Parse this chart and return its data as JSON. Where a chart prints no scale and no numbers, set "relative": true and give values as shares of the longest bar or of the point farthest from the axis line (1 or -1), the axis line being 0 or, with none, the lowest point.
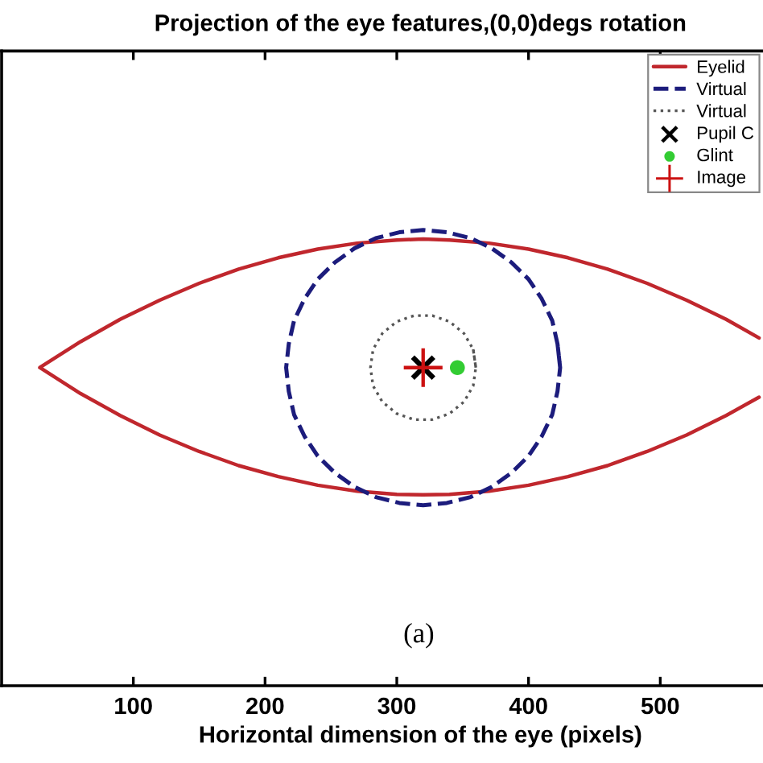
{
  "chart_data": {
    "type": "line",
    "title": "Projection of the eye features,(0,0)degs rotation",
    "xlabel": "Horizontal dimension of the eye (pixels)",
    "annotations": [
      "(a)"
    ],
    "relative": true,
    "xlim": [
      0,
      578
    ],
    "xticks": [
      100,
      200,
      300,
      400,
      500
    ],
    "legend": "top right",
    "series": [
      {
        "name": "Eyelid",
        "color": "#c0272d",
        "line_style": "solid",
        "x": [
          575,
          550,
          520,
          490,
          460,
          430,
          400,
          370,
          340,
          320,
          300,
          270,
          240,
          210,
          180,
          150,
          120,
          90,
          60,
          29,
          60,
          90,
          120,
          150,
          180,
          210,
          240,
          270,
          300,
          320,
          340,
          370,
          400,
          430,
          460,
          490,
          520,
          550,
          575
        ],
        "values": [
          0.633,
          0.593,
          0.55,
          0.514,
          0.483,
          0.459,
          0.44,
          0.427,
          0.42,
          0.419,
          0.42,
          0.427,
          0.44,
          0.459,
          0.483,
          0.514,
          0.55,
          0.593,
          0.641,
          0.698,
          0.755,
          0.804,
          0.846,
          0.883,
          0.914,
          0.939,
          0.958,
          0.971,
          0.978,
          0.98,
          0.978,
          0.971,
          0.958,
          0.939,
          0.914,
          0.883,
          0.846,
          0.804,
          0.763
        ]
      },
      {
        "name": "Virtual",
        "color": "#1c1c7c",
        "line_style": "dashed",
        "x": [
          424,
          422,
          418,
          410,
          400,
          387,
          372,
          356,
          338,
          320,
          302,
          284,
          268,
          253,
          240,
          230,
          222,
          218,
          216,
          218,
          222,
          230,
          240,
          253,
          268,
          284,
          302,
          320,
          338,
          356,
          372,
          387,
          400,
          410,
          418,
          422,
          424,
          422
        ],
        "values": [
          0.698,
          0.75,
          0.801,
          0.849,
          0.892,
          0.929,
          0.96,
          0.982,
          0.995,
          1.0,
          0.995,
          0.982,
          0.96,
          0.929,
          0.892,
          0.849,
          0.801,
          0.75,
          0.698,
          0.646,
          0.595,
          0.547,
          0.504,
          0.467,
          0.436,
          0.414,
          0.401,
          0.396,
          0.401,
          0.414,
          0.436,
          0.467,
          0.504,
          0.547,
          0.595,
          0.646,
          0.698,
          0.75
        ]
      },
      {
        "name": "Virtual",
        "color": "#555555",
        "line_style": "dotted",
        "x": [
          360,
          358,
          351,
          340,
          327,
          313,
          300,
          289,
          282,
          280,
          282,
          289,
          300,
          313,
          327,
          340,
          351,
          358,
          360,
          358
        ],
        "values": [
          0.698,
          0.738,
          0.773,
          0.799,
          0.812,
          0.812,
          0.799,
          0.773,
          0.738,
          0.698,
          0.658,
          0.623,
          0.597,
          0.584,
          0.584,
          0.597,
          0.623,
          0.658,
          0.698,
          0.738
        ]
      },
      {
        "name": "Pupil C",
        "type": "scatter",
        "marker": "cross",
        "color": "#000000",
        "x": [
          320
        ],
        "values": [
          0.698
        ]
      },
      {
        "name": "Glint",
        "type": "scatter",
        "marker": "circle",
        "color": "#33cc33",
        "x": [
          346
        ],
        "values": [
          0.698
        ]
      },
      {
        "name": "Image",
        "type": "scatter",
        "marker": "plus",
        "color": "#cc1111",
        "x": [
          320
        ],
        "values": [
          0.698
        ]
      }
    ]
  }
}
